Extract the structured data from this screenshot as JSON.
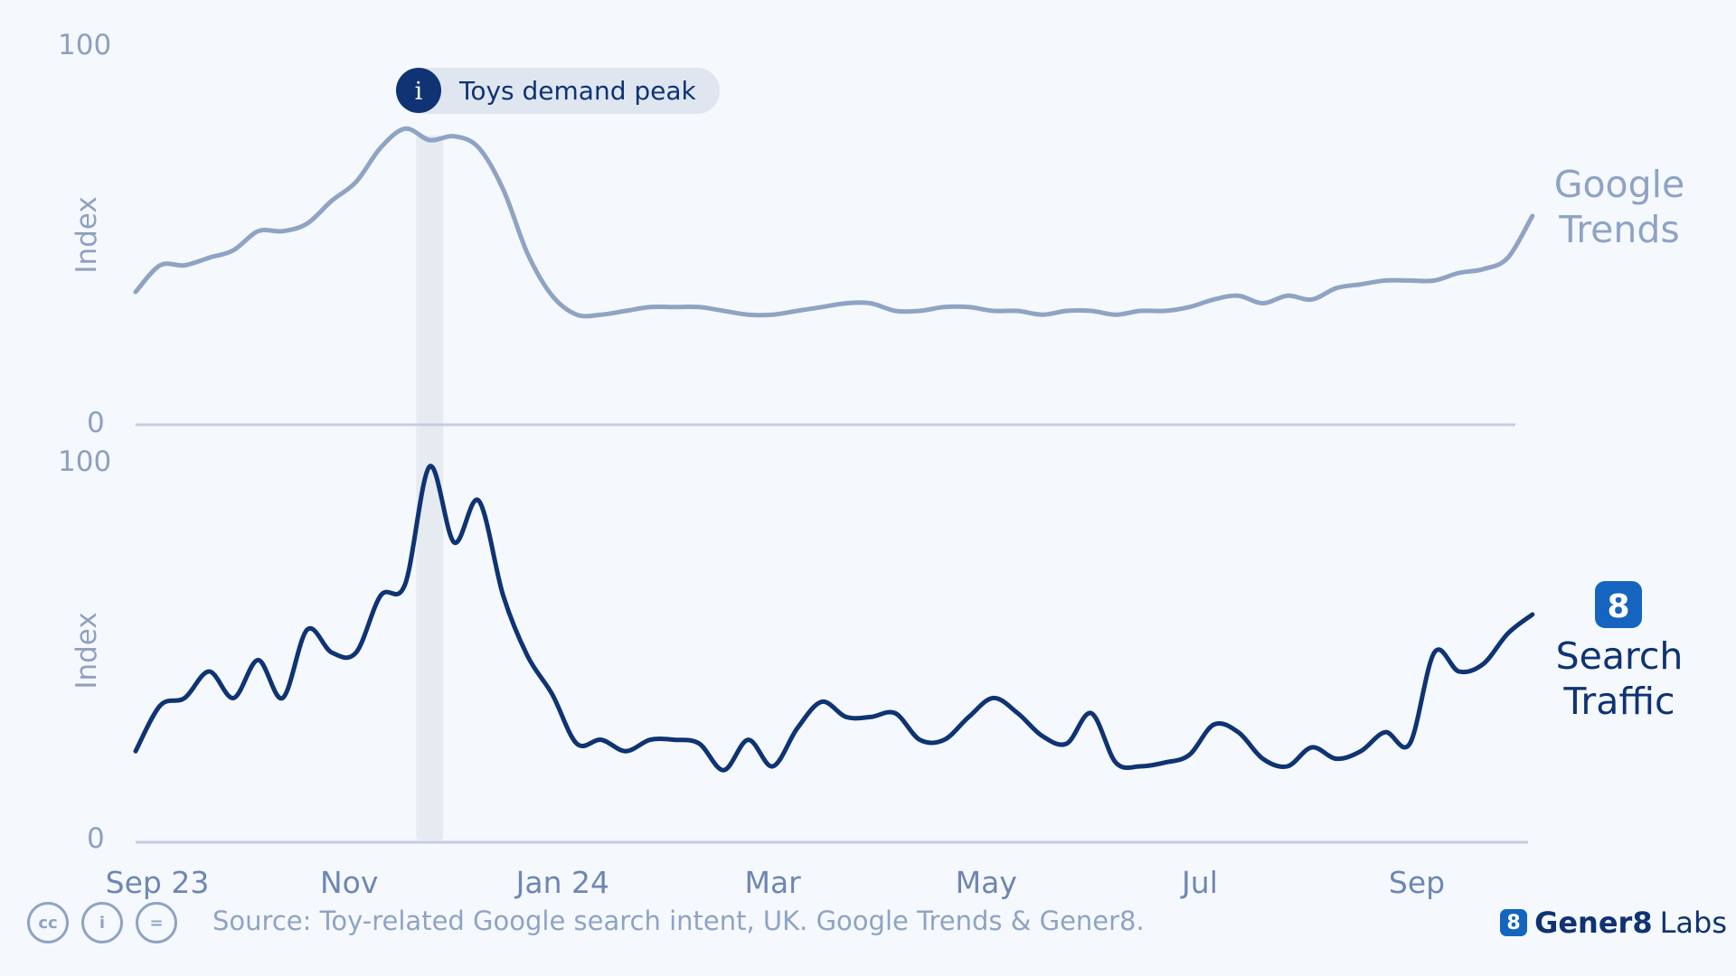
{
  "chart_data": [
    {
      "type": "line",
      "series_name": "Google Trends",
      "label": "Google Trends",
      "ylabel": "Index",
      "ylim": [
        0,
        100
      ],
      "yticks": [
        "0",
        "100"
      ],
      "color": "#8fa3c4",
      "x": [
        "2023-09-01",
        "2023-09-08",
        "2023-09-15",
        "2023-09-22",
        "2023-09-29",
        "2023-10-06",
        "2023-10-13",
        "2023-10-20",
        "2023-10-27",
        "2023-11-03",
        "2023-11-10",
        "2023-11-17",
        "2023-11-24",
        "2023-12-01",
        "2023-12-08",
        "2023-12-15",
        "2023-12-22",
        "2023-12-29",
        "2024-01-05",
        "2024-01-12",
        "2024-01-19",
        "2024-01-26",
        "2024-02-02",
        "2024-02-09",
        "2024-02-16",
        "2024-02-23",
        "2024-03-01",
        "2024-03-08",
        "2024-03-15",
        "2024-03-22",
        "2024-03-29",
        "2024-04-05",
        "2024-04-12",
        "2024-04-19",
        "2024-04-26",
        "2024-05-03",
        "2024-05-10",
        "2024-05-17",
        "2024-05-24",
        "2024-05-31",
        "2024-06-07",
        "2024-06-14",
        "2024-06-21",
        "2024-06-28",
        "2024-07-05",
        "2024-07-12",
        "2024-07-19",
        "2024-07-26",
        "2024-08-02",
        "2024-08-09",
        "2024-08-16",
        "2024-08-23",
        "2024-08-30",
        "2024-09-06",
        "2024-09-13",
        "2024-09-20",
        "2024-09-27",
        "2024-10-04"
      ],
      "values": [
        35,
        42,
        42,
        44,
        46,
        51,
        51,
        53,
        59,
        64,
        73,
        78,
        75,
        76,
        73,
        62,
        45,
        34,
        29,
        29,
        30,
        31,
        31,
        31,
        30,
        29,
        29,
        30,
        31,
        32,
        32,
        30,
        30,
        31,
        31,
        30,
        30,
        29,
        30,
        30,
        29,
        30,
        30,
        31,
        33,
        34,
        32,
        34,
        33,
        36,
        37,
        38,
        38,
        38,
        40,
        41,
        44,
        55
      ],
      "values_extra_comment": ""
    },
    {
      "type": "line",
      "series_name": "Search Traffic",
      "label": "Search Traffic",
      "ylabel": "Index",
      "ylim": [
        0,
        100
      ],
      "yticks": [
        "0",
        "100"
      ],
      "color": "#0f3373",
      "values": [
        24,
        36,
        38,
        45,
        38,
        48,
        38,
        56,
        50,
        50,
        65,
        68,
        99,
        79,
        90,
        65,
        49,
        39,
        26,
        27,
        24,
        27,
        27,
        26,
        19,
        27,
        20,
        30,
        37,
        33,
        33,
        34,
        27,
        27,
        33,
        38,
        34,
        28,
        26,
        34,
        21,
        20,
        21,
        23,
        31,
        29,
        22,
        20,
        25,
        22,
        24,
        29,
        26,
        50,
        45,
        47,
        55,
        60
      ],
      "x": "same as Google Trends"
    }
  ],
  "x_axis": {
    "ticks": [
      {
        "label": "Sep 23",
        "date": "2023-09-01"
      },
      {
        "label": "Nov",
        "date": "2023-11-01"
      },
      {
        "label": "Jan 24",
        "date": "2024-01-01"
      },
      {
        "label": "Mar",
        "date": "2024-03-01"
      },
      {
        "label": "May",
        "date": "2024-05-01"
      },
      {
        "label": "Jul",
        "date": "2024-07-01"
      },
      {
        "label": "Sep",
        "date": "2024-09-01"
      }
    ]
  },
  "annotation": {
    "text": "Toys demand peak",
    "icon": "info-icon",
    "icon_glyph": "i",
    "highlight_date": "2023-11-24"
  },
  "labels": {
    "trends_line1": "Google",
    "trends_line2": "Trends",
    "search_line1": "Search",
    "search_line2": "Traffic",
    "search_logo_glyph": "8"
  },
  "footer": {
    "cc_icons": [
      "cc-icon",
      "by-icon",
      "nd-icon"
    ],
    "cc_glyphs": [
      "cc",
      "i",
      "="
    ],
    "source": "Source: Toy-related Google search intent, UK. Google Trends & Gener8.",
    "brand_badge": "8",
    "brand_bold": "Gener8",
    "brand_rest": "Labs"
  },
  "colors": {
    "background": "#f5f9fd",
    "trends": "#8fa3c4",
    "search": "#0f3373",
    "axis": "#c4cde0",
    "highlight": "#e6ebf2",
    "logo": "#1565c0"
  }
}
